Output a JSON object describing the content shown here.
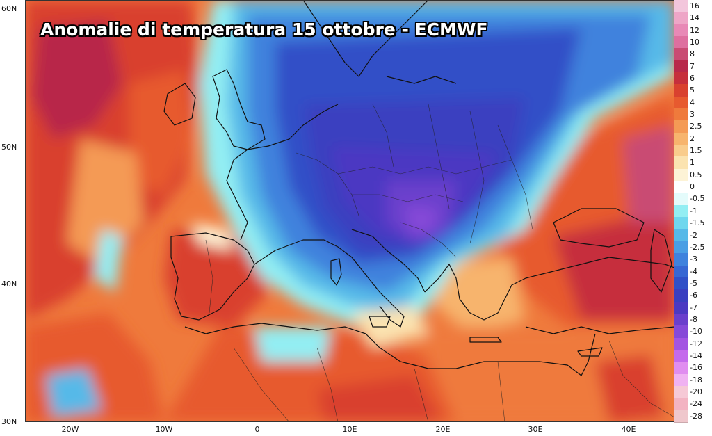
{
  "title": "Anomalie di temperatura 15 ottobre - ECMWF",
  "lat_labels": [
    "60N",
    "50N",
    "40N",
    "30N"
  ],
  "lon_labels": [
    "20W",
    "10W",
    "0",
    "10E",
    "20E",
    "30E",
    "40E"
  ],
  "legend": [
    {
      "label": "16",
      "color": "#f3c6dc"
    },
    {
      "label": "14",
      "color": "#eea6c7"
    },
    {
      "label": "12",
      "color": "#e889b6"
    },
    {
      "label": "10",
      "color": "#de6f9f"
    },
    {
      "label": "8",
      "color": "#c94b73"
    },
    {
      "label": "7",
      "color": "#b8284a"
    },
    {
      "label": "6",
      "color": "#c62f3c"
    },
    {
      "label": "5",
      "color": "#d9412f"
    },
    {
      "label": "4",
      "color": "#e75a2f"
    },
    {
      "label": "3",
      "color": "#ef7a3c"
    },
    {
      "label": "2.5",
      "color": "#f49a55"
    },
    {
      "label": "2",
      "color": "#f7b46d"
    },
    {
      "label": "1.5",
      "color": "#f9cc8c"
    },
    {
      "label": "1",
      "color": "#fbe3b0"
    },
    {
      "label": "0.5",
      "color": "#fdf3d6"
    },
    {
      "label": "0",
      "color": "#ffffff"
    },
    {
      "label": "-0.5",
      "color": "#e4fbfb"
    },
    {
      "label": "-1",
      "color": "#93eef3"
    },
    {
      "label": "-1.5",
      "color": "#6fd7ee"
    },
    {
      "label": "-2",
      "color": "#57b9e8"
    },
    {
      "label": "-2.5",
      "color": "#4a9ee4"
    },
    {
      "label": "-3",
      "color": "#3f82dd"
    },
    {
      "label": "-4",
      "color": "#3767d3"
    },
    {
      "label": "-5",
      "color": "#3150c7"
    },
    {
      "label": "-6",
      "color": "#3a3fc0"
    },
    {
      "label": "-7",
      "color": "#4c39c2"
    },
    {
      "label": "-8",
      "color": "#6a3fcc"
    },
    {
      "label": "-10",
      "color": "#8649d8"
    },
    {
      "label": "-12",
      "color": "#a354e2"
    },
    {
      "label": "-14",
      "color": "#c46aec"
    },
    {
      "label": "-16",
      "color": "#e08df0"
    },
    {
      "label": "-18",
      "color": "#f0b2f2"
    },
    {
      "label": "-20",
      "color": "#f6c9d6"
    },
    {
      "label": "-24",
      "color": "#f3b3c2"
    },
    {
      "label": "-28",
      "color": "#efc7cc"
    }
  ]
}
